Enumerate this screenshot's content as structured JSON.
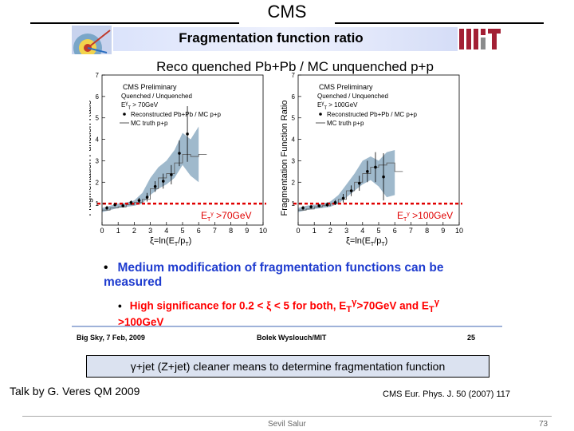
{
  "header": {
    "title": "CMS"
  },
  "slide": {
    "banner_title": "Fragmentation function ratio",
    "subtitle": "Reco quenched Pb+Pb / MC unquenched p+p",
    "bullet_main": "Medium modification of fragmentation functions can be measured",
    "bullet_sub": "High significance for 0.2 < ξ < 5 for both, E",
    "bullet_sub_mid": ">70GeV and E",
    "bullet_sub_end": ">100GeV",
    "sub_T": "T",
    "sup_gamma": "γ",
    "footer_left": "Big Sky, 7 Feb, 2009",
    "footer_center": "Bolek Wyslouch/MIT",
    "footer_right": "25",
    "bullet_symbol": "•"
  },
  "chart_data": [
    {
      "type": "scatter",
      "panel": "left",
      "ylabel": "Fragmentation Function Ratio",
      "xlabel": "ξ=ln(E",
      "xlabel_mid": "/p",
      "xlabel_end": ")",
      "xlim": [
        0,
        10
      ],
      "ylim": [
        0,
        7
      ],
      "xticks": [
        "0",
        "1",
        "2",
        "3",
        "4",
        "5",
        "6",
        "7",
        "8",
        "9",
        "10"
      ],
      "yticks": [
        "1",
        "2",
        "3",
        "4",
        "5",
        "6",
        "7"
      ],
      "legend_title": "CMS Preliminary",
      "legend_line2": "Quenched / Unquenched",
      "legend_cut": "E",
      "legend_cut_val": " > 70GeV",
      "legend_reco": "Reconstructed Pb+Pb / MC p+p",
      "legend_mc": "MC truth p+p",
      "cut_label": "E",
      "cut_label_val": " >70GeV",
      "reference_line": 1,
      "points": {
        "x": [
          0.3,
          0.8,
          1.3,
          1.8,
          2.3,
          2.8,
          3.3,
          3.8,
          4.3,
          4.8,
          5.3
        ],
        "y": [
          0.8,
          0.95,
          0.9,
          1.05,
          1.15,
          1.3,
          1.8,
          2.05,
          2.35,
          3.35,
          4.25
        ],
        "err": [
          0.1,
          0.08,
          0.08,
          0.1,
          0.12,
          0.2,
          0.25,
          0.35,
          0.45,
          0.6,
          1.3
        ]
      },
      "band": {
        "x": [
          0,
          0.5,
          1,
          1.5,
          2,
          2.5,
          3,
          3.5,
          4,
          4.5,
          5,
          5.5,
          6
        ],
        "lo": [
          0.6,
          0.7,
          0.8,
          0.85,
          0.9,
          1.0,
          1.4,
          1.7,
          1.9,
          2.2,
          2.8,
          2.3,
          2.0
        ],
        "hi": [
          0.8,
          0.9,
          1.0,
          1.05,
          1.15,
          1.5,
          2.2,
          2.7,
          3.0,
          3.5,
          4.3,
          4.0,
          4.6
        ]
      },
      "mc_truth": {
        "x": [
          0.0,
          0.5,
          1.0,
          1.5,
          2.0,
          2.5,
          3.0,
          3.5,
          4.0,
          4.5,
          5.0,
          5.5,
          6.0
        ],
        "y": [
          0.7,
          0.8,
          0.85,
          0.95,
          1.05,
          1.2,
          1.7,
          2.2,
          2.4,
          2.9,
          3.3,
          3.2,
          3.3
        ]
      }
    },
    {
      "type": "scatter",
      "panel": "right",
      "ylabel": "Fragmentation Function Ratio",
      "xlabel": "ξ=ln(E",
      "xlabel_mid": "/p",
      "xlabel_end": ")",
      "xlim": [
        0,
        10
      ],
      "ylim": [
        0,
        7
      ],
      "xticks": [
        "0",
        "1",
        "2",
        "3",
        "4",
        "5",
        "6",
        "7",
        "8",
        "9",
        "10"
      ],
      "yticks": [
        "1",
        "2",
        "3",
        "4",
        "5",
        "6",
        "7"
      ],
      "legend_title": "CMS Preliminary",
      "legend_line2": "Quenched / Unquenched",
      "legend_cut": "E",
      "legend_cut_val": " > 100GeV",
      "legend_reco": "Reconstructed Pb+Pb / MC p+p",
      "legend_mc": "MC truth p+p",
      "cut_label": "E",
      "cut_label_val": " >100GeV",
      "reference_line": 1,
      "points": {
        "x": [
          0.3,
          0.8,
          1.3,
          1.8,
          2.3,
          2.8,
          3.3,
          3.8,
          4.3,
          4.8,
          5.3
        ],
        "y": [
          0.8,
          0.85,
          0.9,
          0.95,
          1.05,
          1.25,
          1.6,
          1.95,
          2.5,
          2.7,
          2.25
        ],
        "err": [
          0.1,
          0.08,
          0.08,
          0.1,
          0.12,
          0.2,
          0.25,
          0.35,
          0.5,
          0.7,
          1.1
        ]
      },
      "band": {
        "x": [
          0,
          0.5,
          1,
          1.5,
          2,
          2.5,
          3,
          3.5,
          4,
          4.5,
          5,
          5.5,
          6
        ],
        "lo": [
          0.6,
          0.7,
          0.75,
          0.8,
          0.85,
          1.0,
          1.3,
          1.6,
          1.9,
          2.1,
          1.8,
          1.3,
          1.4
        ],
        "hi": [
          0.8,
          0.9,
          0.95,
          1.0,
          1.1,
          1.4,
          1.9,
          2.4,
          3.0,
          3.2,
          3.0,
          3.4,
          3.5
        ]
      },
      "mc_truth": {
        "x": [
          0.0,
          0.5,
          1.0,
          1.5,
          2.0,
          2.5,
          3.0,
          3.5,
          4.0,
          4.5,
          5.0,
          5.5,
          6.0
        ],
        "y": [
          0.7,
          0.75,
          0.85,
          0.9,
          1.0,
          1.2,
          1.6,
          2.0,
          2.4,
          2.7,
          2.8,
          2.9,
          2.5
        ]
      }
    }
  ],
  "callout": {
    "prefix": "γ",
    "text": "+jet (Z+jet) cleaner means to determine fragmentation function"
  },
  "footer": {
    "talk": "Talk by G. Veres QM 2009",
    "reference": "CMS Eur. Phys. J. 50 (2007) 117",
    "author": "Sevil Salur",
    "page": "73"
  },
  "colors": {
    "band": "#9fb9cc",
    "reference": "#e00000",
    "bullet_blue": "#1f3ccf",
    "bullet_red": "#ff0000"
  }
}
